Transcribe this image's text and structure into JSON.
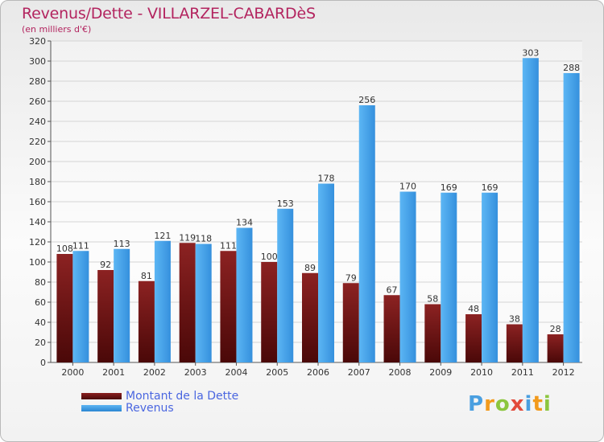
{
  "chart_data": {
    "type": "bar",
    "title": "Revenus/Dette - VILLARZEL-CABARDèS",
    "subtitle": "(en milliers d'€)",
    "categories": [
      "2000",
      "2001",
      "2002",
      "2003",
      "2004",
      "2005",
      "2006",
      "2007",
      "2008",
      "2009",
      "2010",
      "2011",
      "2012"
    ],
    "series": [
      {
        "name": "Montant de la Dette",
        "color": "#6e1414",
        "values": [
          108,
          92,
          81,
          119,
          111,
          100,
          89,
          79,
          67,
          58,
          48,
          38,
          28
        ]
      },
      {
        "name": "Revenus",
        "color": "#3d9ce6",
        "values": [
          111,
          113,
          121,
          118,
          134,
          153,
          178,
          256,
          170,
          169,
          169,
          303,
          288
        ]
      }
    ],
    "ylim": [
      0,
      320
    ],
    "yticks": [
      0,
      20,
      40,
      60,
      80,
      100,
      120,
      140,
      160,
      180,
      200,
      220,
      240,
      260,
      280,
      300,
      320
    ],
    "grid": true,
    "legend_position": "bottom-left"
  },
  "logo": {
    "text": "Proxiti"
  }
}
